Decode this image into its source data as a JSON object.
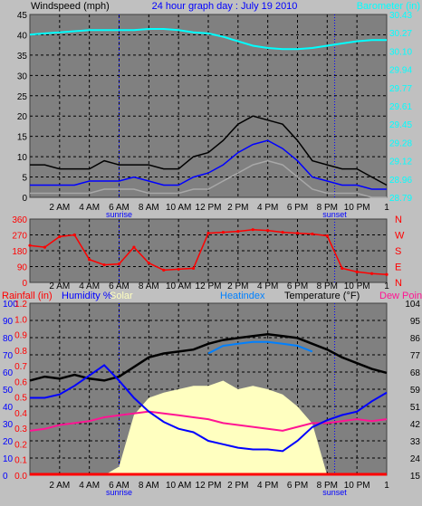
{
  "colors": {
    "page_bg": "#c0c0c0",
    "plot_bg": "#808080",
    "grid": "#000000",
    "wind_gust": "#000000",
    "wind_avg": "#0000ff",
    "wind_min": "#a8a8a8",
    "barometer": "#00ffff",
    "direction": "#ff0000",
    "rainfall": "#ff0000",
    "humidity": "#0000ff",
    "solar": "#ffffc0",
    "heatindex": "#0080ff",
    "temperature": "#000000",
    "dewpoint": "#ff1493",
    "sunrise_sunset": "#0000ff"
  },
  "header": {
    "left_title": "Windspeed (mph)",
    "center_title": "24 hour graph day : July 19 2010",
    "right_title": "Barometer (in)"
  },
  "x_axis": {
    "time_labels": [
      "2 AM",
      "4 AM",
      "6 AM",
      "8 AM",
      "10 AM",
      "12 PM",
      "2 PM",
      "4 PM",
      "6 PM",
      "8 PM",
      "10 PM"
    ],
    "end_tick": "1",
    "sunrise_label": "sunrise",
    "sunset_label": "sunset",
    "sunrise_hour": 6.0,
    "sunset_hour": 20.5
  },
  "panel_direction": {
    "left_ticks": [
      "360",
      "270",
      "180",
      "90",
      "0"
    ],
    "right_ticks": [
      "N",
      "W",
      "S",
      "E",
      "N"
    ]
  },
  "panel_temp_header": {
    "rainfall": "Rainfall (in)",
    "humidity": "Humidity %",
    "solar": "Solar",
    "heatindex": "Heatindex",
    "temperature": "Temperature (°F)",
    "dewpoint": "Dew Point"
  },
  "chart_data": [
    {
      "type": "line",
      "title": "24 hour graph day : July 19 2010",
      "xlabel": "",
      "ylabel": "Windspeed (mph)",
      "ylabel_right": "Barometer (in)",
      "x_hours": [
        0,
        1,
        2,
        3,
        4,
        5,
        6,
        7,
        8,
        9,
        10,
        11,
        12,
        13,
        14,
        15,
        16,
        17,
        18,
        19,
        20,
        21,
        22,
        23,
        24
      ],
      "ylim": [
        0,
        45
      ],
      "y_ticks": [
        "45",
        "40",
        "35",
        "30",
        "25",
        "20",
        "15",
        "10",
        "5",
        "0"
      ],
      "y2lim": [
        28.79,
        30.43
      ],
      "y2_ticks": [
        "30.43",
        "30.27",
        "30.10",
        "29.94",
        "29.77",
        "29.61",
        "29.45",
        "29.28",
        "29.12",
        "28.96",
        "28.79"
      ],
      "series": [
        {
          "name": "gust",
          "axis": "left",
          "values": [
            8,
            8,
            7,
            7,
            7,
            9,
            8,
            8,
            8,
            7,
            7,
            10,
            11,
            14,
            18,
            20,
            19,
            18,
            14,
            9,
            8,
            7,
            7,
            5,
            3
          ]
        },
        {
          "name": "average",
          "axis": "left",
          "values": [
            3,
            3,
            3,
            3,
            4,
            4,
            4,
            5,
            4,
            3,
            3,
            5,
            6,
            8,
            11,
            13,
            14,
            12,
            9,
            5,
            4,
            3,
            3,
            2,
            2
          ]
        },
        {
          "name": "minimum",
          "axis": "left",
          "values": [
            1,
            1,
            1,
            1,
            1,
            2,
            2,
            2,
            1,
            1,
            1,
            2,
            2,
            4,
            6,
            8,
            9,
            8,
            5,
            2,
            1,
            1,
            1,
            0,
            0
          ]
        },
        {
          "name": "barometer",
          "axis": "right",
          "values": [
            30.25,
            30.26,
            30.27,
            30.28,
            30.29,
            30.29,
            30.29,
            30.29,
            30.3,
            30.3,
            30.29,
            30.27,
            30.26,
            30.23,
            30.19,
            30.15,
            30.13,
            30.12,
            30.12,
            30.13,
            30.15,
            30.17,
            30.19,
            30.2,
            30.2
          ]
        }
      ]
    },
    {
      "type": "scatter",
      "title": "",
      "xlabel": "",
      "ylabel": "",
      "x_hours": [
        0,
        1,
        2,
        3,
        4,
        5,
        6,
        7,
        8,
        9,
        10,
        11,
        12,
        13,
        14,
        15,
        16,
        17,
        18,
        19,
        20,
        21,
        22,
        23,
        24
      ],
      "ylim": [
        0,
        360
      ],
      "series": [
        {
          "name": "wind direction",
          "values": [
            210,
            200,
            260,
            270,
            130,
            100,
            105,
            200,
            110,
            70,
            75,
            80,
            280,
            285,
            290,
            300,
            295,
            285,
            280,
            275,
            265,
            80,
            60,
            50,
            45
          ]
        }
      ]
    },
    {
      "type": "line",
      "title": "",
      "xlabel": "",
      "ylabel": "Rainfall (in)",
      "ylabel_right": "Temperature (°F)",
      "x_hours": [
        0,
        1,
        2,
        3,
        4,
        5,
        6,
        7,
        8,
        9,
        10,
        11,
        12,
        13,
        14,
        15,
        16,
        17,
        18,
        19,
        20,
        21,
        22,
        23,
        24
      ],
      "y_humidity_ticks": [
        "100",
        "90",
        "80",
        "70",
        "60",
        "50",
        "40",
        "30",
        "20",
        "10",
        "0"
      ],
      "y_rain_ticks": [
        "1.2",
        "1.0",
        "0.9",
        "0.8",
        "0.7",
        "0.6",
        "0.5",
        "0.4",
        "0.3",
        "0.2",
        "0.1",
        "0.0"
      ],
      "y_temp_ticks": [
        "104",
        "95",
        "86",
        "77",
        "68",
        "59",
        "51",
        "42",
        "33",
        "24",
        "15"
      ],
      "ylim_humidity": [
        0,
        100
      ],
      "ylim_temp": [
        15,
        104
      ],
      "series": [
        {
          "name": "Temperature",
          "axis": "temp",
          "values": [
            64,
            66,
            65,
            67,
            65,
            64,
            66,
            71,
            76,
            78,
            79,
            80,
            83,
            85,
            86,
            87,
            88,
            87,
            86,
            83,
            80,
            76,
            73,
            70,
            68
          ]
        },
        {
          "name": "Heatindex",
          "axis": "temp",
          "values": [
            null,
            null,
            null,
            null,
            null,
            null,
            null,
            null,
            null,
            null,
            null,
            null,
            78,
            82,
            83,
            84,
            84,
            83,
            82,
            79,
            null,
            null,
            null,
            null,
            null
          ]
        },
        {
          "name": "Dew Point",
          "axis": "temp",
          "values": [
            38,
            39,
            41,
            42,
            43,
            45,
            46,
            47,
            48,
            47,
            46,
            45,
            44,
            42,
            41,
            40,
            39,
            38,
            40,
            42,
            42,
            43,
            44,
            43,
            44
          ]
        },
        {
          "name": "Humidity",
          "axis": "humidity",
          "values": [
            45,
            45,
            47,
            52,
            58,
            64,
            55,
            45,
            37,
            31,
            27,
            25,
            20,
            18,
            16,
            15,
            15,
            14,
            20,
            28,
            32,
            35,
            37,
            43,
            48
          ]
        },
        {
          "name": "Rainfall",
          "axis": "rain",
          "values": [
            0,
            0,
            0,
            0,
            0,
            0,
            0,
            0,
            0,
            0,
            0,
            0,
            0,
            0,
            0,
            0,
            0,
            0,
            0,
            0,
            0,
            0,
            0,
            0,
            0
          ]
        },
        {
          "name": "Solar",
          "axis": "humidity",
          "values": [
            0,
            0,
            0,
            0,
            0,
            0,
            5,
            35,
            45,
            48,
            50,
            52,
            52,
            55,
            50,
            52,
            50,
            47,
            40,
            30,
            0,
            0,
            0,
            0,
            0
          ]
        }
      ]
    }
  ]
}
